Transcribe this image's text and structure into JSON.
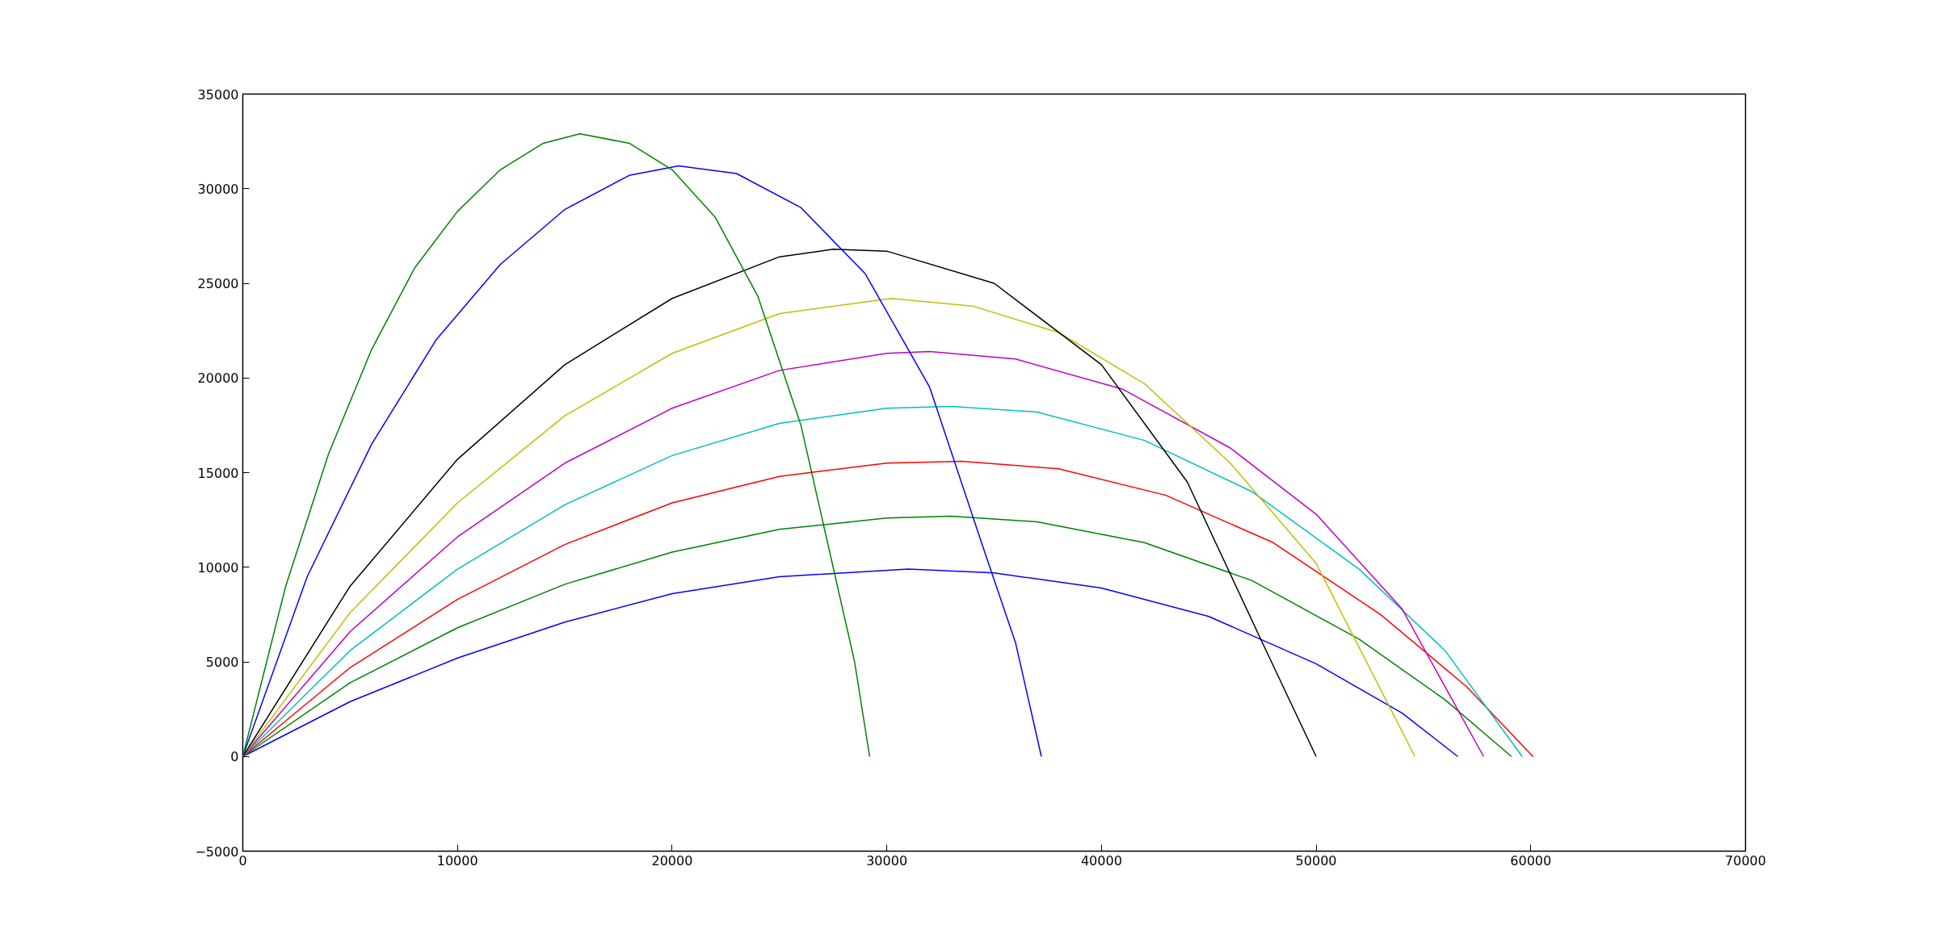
{
  "chart_data": {
    "type": "line",
    "grid": false,
    "marker": "none",
    "line_style": "solid",
    "xlim": [
      0,
      70000
    ],
    "xticks": [
      0,
      10000,
      20000,
      30000,
      40000,
      50000,
      60000,
      70000
    ],
    "ylim": [
      -5000,
      35000
    ],
    "yticks": [
      {
        "value": -5000,
        "label": "−5000"
      },
      0,
      5000,
      10000,
      15000,
      20000,
      25000,
      30000,
      35000
    ],
    "series": [
      {
        "color": "#0000ff",
        "x": [
          0,
          5000,
          10000,
          15000,
          20000,
          25000,
          31000,
          35000,
          40000,
          45000,
          50000,
          54000,
          56600
        ],
        "values": [
          0,
          2900,
          5200,
          7100,
          8600,
          9500,
          9900,
          9700,
          8900,
          7400,
          4900,
          2300,
          0
        ]
      },
      {
        "color": "#008000",
        "x": [
          0,
          5000,
          10000,
          15000,
          20000,
          25000,
          30000,
          33000,
          37000,
          42000,
          47000,
          52000,
          56000,
          59100
        ],
        "values": [
          0,
          3900,
          6800,
          9100,
          10800,
          12000,
          12600,
          12700,
          12400,
          11300,
          9300,
          6200,
          3000,
          0
        ]
      },
      {
        "color": "#ff0000",
        "x": [
          0,
          5000,
          10000,
          15000,
          20000,
          25000,
          30000,
          33500,
          38000,
          43000,
          48000,
          53000,
          57000,
          60100
        ],
        "values": [
          0,
          4700,
          8300,
          11200,
          13400,
          14800,
          15500,
          15600,
          15200,
          13800,
          11300,
          7500,
          3700,
          0
        ]
      },
      {
        "color": "#00bfbf",
        "x": [
          0,
          5000,
          10000,
          15000,
          20000,
          25000,
          30000,
          33000,
          37000,
          42000,
          47000,
          52000,
          56000,
          59600
        ],
        "values": [
          0,
          5600,
          9900,
          13300,
          15900,
          17600,
          18400,
          18500,
          18200,
          16700,
          14000,
          9900,
          5600,
          0
        ]
      },
      {
        "color": "#bf00bf",
        "x": [
          0,
          5000,
          10000,
          15000,
          20000,
          25000,
          30000,
          32000,
          36000,
          41000,
          46000,
          50000,
          54000,
          57800
        ],
        "values": [
          0,
          6600,
          11600,
          15500,
          18400,
          20400,
          21300,
          21400,
          21000,
          19400,
          16300,
          12800,
          7800,
          0
        ]
      },
      {
        "color": "#bfbf00",
        "x": [
          0,
          5000,
          10000,
          15000,
          20000,
          25000,
          30200,
          34000,
          38000,
          42000,
          46000,
          50000,
          54600
        ],
        "values": [
          0,
          7600,
          13400,
          18000,
          21300,
          23400,
          24200,
          23800,
          22400,
          19700,
          15500,
          10200,
          0
        ]
      },
      {
        "color": "#000000",
        "x": [
          0,
          5000,
          10000,
          15000,
          20000,
          25000,
          27500,
          30000,
          35000,
          40000,
          44000,
          47500,
          50000
        ],
        "values": [
          0,
          9000,
          15700,
          20700,
          24200,
          26400,
          26800,
          26700,
          25000,
          20700,
          14500,
          6000,
          0
        ]
      },
      {
        "color": "#0000ff",
        "x": [
          0,
          3000,
          6000,
          9000,
          12000,
          15000,
          18000,
          20300,
          23000,
          26000,
          29000,
          32000,
          34500,
          36000,
          37200
        ],
        "values": [
          0,
          9500,
          16500,
          22000,
          26000,
          28900,
          30700,
          31200,
          30800,
          29000,
          25500,
          19500,
          11000,
          6000,
          0
        ]
      },
      {
        "color": "#008000",
        "x": [
          0,
          2000,
          4000,
          6000,
          8000,
          10000,
          12000,
          14000,
          15700,
          18000,
          20000,
          22000,
          24000,
          26000,
          27500,
          28500,
          29200
        ],
        "values": [
          0,
          9000,
          16000,
          21500,
          25800,
          28800,
          31000,
          32400,
          32900,
          32400,
          31000,
          28500,
          24300,
          17500,
          10000,
          5000,
          0
        ]
      }
    ]
  }
}
